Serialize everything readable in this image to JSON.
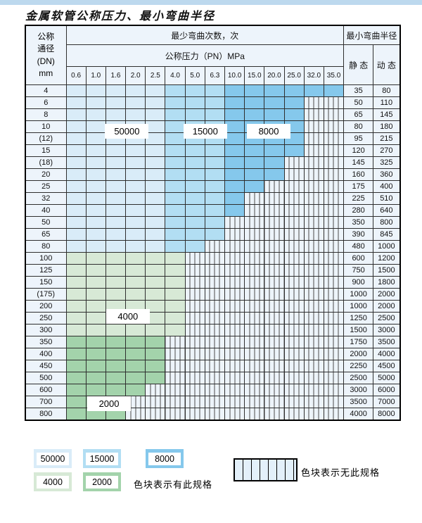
{
  "page": {
    "title": "金属软管公称压力、最小弯曲半径"
  },
  "colors": {
    "top_strip": "#bdd9ee",
    "grid_line": "#2e2e2e",
    "header_bg": "#edf4fb",
    "hatch_bg": "#edf4fa",
    "blue_50000": "#d9ecf8",
    "blue_15000": "#b2def3",
    "blue_8000": "#85c8ec",
    "green_4000": "#d7e9d6",
    "green_2000": "#a3d3ab"
  },
  "table": {
    "corner_lines": [
      "公称",
      "通径",
      "(DN)",
      "mm"
    ],
    "bend_cycles_header": "最少弯曲次数，次",
    "pressure_header": "公称压力（PN）MPa",
    "radius_header": "最小弯曲半径",
    "static_header": "静 态",
    "dynamic_header": "动 态",
    "pressure_columns": [
      "0.6",
      "1.0",
      "1.6",
      "2.0",
      "2.5",
      "4.0",
      "5.0",
      "6.3",
      "10.0",
      "15.0",
      "20.0",
      "25.0",
      "32.0",
      "35.0"
    ],
    "rows": [
      {
        "dn": "4",
        "last_colored_col": 13,
        "band": "blue",
        "static": "35",
        "dynamic": "80"
      },
      {
        "dn": "6",
        "last_colored_col": 11,
        "band": "blue",
        "static": "50",
        "dynamic": "110"
      },
      {
        "dn": "8",
        "last_colored_col": 11,
        "band": "blue",
        "static": "65",
        "dynamic": "145"
      },
      {
        "dn": "10",
        "last_colored_col": 11,
        "band": "blue",
        "static": "80",
        "dynamic": "180"
      },
      {
        "dn": "(12)",
        "last_colored_col": 11,
        "band": "blue",
        "static": "95",
        "dynamic": "215"
      },
      {
        "dn": "15",
        "last_colored_col": 11,
        "band": "blue",
        "static": "120",
        "dynamic": "270"
      },
      {
        "dn": "(18)",
        "last_colored_col": 10,
        "band": "blue",
        "static": "145",
        "dynamic": "325"
      },
      {
        "dn": "20",
        "last_colored_col": 10,
        "band": "blue",
        "static": "160",
        "dynamic": "360"
      },
      {
        "dn": "25",
        "last_colored_col": 9,
        "band": "blue",
        "static": "175",
        "dynamic": "400"
      },
      {
        "dn": "32",
        "last_colored_col": 8,
        "band": "blue",
        "static": "225",
        "dynamic": "510"
      },
      {
        "dn": "40",
        "last_colored_col": 8,
        "band": "blue",
        "static": "280",
        "dynamic": "640"
      },
      {
        "dn": "50",
        "last_colored_col": 7,
        "band": "blue",
        "static": "350",
        "dynamic": "800"
      },
      {
        "dn": "65",
        "last_colored_col": 7,
        "band": "blue",
        "static": "390",
        "dynamic": "845"
      },
      {
        "dn": "80",
        "last_colored_col": 6,
        "band": "blue",
        "static": "480",
        "dynamic": "1000"
      },
      {
        "dn": "100",
        "last_colored_col": 5,
        "band": "green-light",
        "static": "600",
        "dynamic": "1200"
      },
      {
        "dn": "125",
        "last_colored_col": 5,
        "band": "green-light",
        "static": "750",
        "dynamic": "1500"
      },
      {
        "dn": "150",
        "last_colored_col": 5,
        "band": "green-light",
        "static": "900",
        "dynamic": "1800"
      },
      {
        "dn": "(175)",
        "last_colored_col": 5,
        "band": "green-light",
        "static": "1000",
        "dynamic": "2000"
      },
      {
        "dn": "200",
        "last_colored_col": 5,
        "band": "green-light",
        "static": "1000",
        "dynamic": "2000"
      },
      {
        "dn": "250",
        "last_colored_col": 5,
        "band": "green-light",
        "static": "1250",
        "dynamic": "2500"
      },
      {
        "dn": "300",
        "last_colored_col": 5,
        "band": "green-light",
        "static": "1500",
        "dynamic": "3000"
      },
      {
        "dn": "350",
        "last_colored_col": 4,
        "band": "green-dark",
        "static": "1750",
        "dynamic": "3500"
      },
      {
        "dn": "400",
        "last_colored_col": 4,
        "band": "green-dark",
        "static": "2000",
        "dynamic": "4000"
      },
      {
        "dn": "450",
        "last_colored_col": 4,
        "band": "green-dark",
        "static": "2250",
        "dynamic": "4500"
      },
      {
        "dn": "500",
        "last_colored_col": 4,
        "band": "green-dark",
        "static": "2500",
        "dynamic": "5000"
      },
      {
        "dn": "600",
        "last_colored_col": 3,
        "band": "green-dark",
        "static": "3000",
        "dynamic": "6000"
      },
      {
        "dn": "700",
        "last_colored_col": 2,
        "band": "green-dark",
        "static": "3500",
        "dynamic": "7000"
      },
      {
        "dn": "800",
        "last_colored_col": 2,
        "band": "green-dark",
        "static": "4000",
        "dynamic": "8000"
      }
    ]
  },
  "overlay_labels": [
    {
      "text": "50000",
      "col_boundary": 3.1,
      "row_boundary": 3.8
    },
    {
      "text": "15000",
      "col_boundary": 7.05,
      "row_boundary": 3.8
    },
    {
      "text": "8000",
      "col_boundary": 10.25,
      "row_boundary": 3.8
    },
    {
      "text": "4000",
      "col_boundary": 3.15,
      "row_boundary": 18.4
    },
    {
      "text": "2000",
      "col_boundary": 2.2,
      "row_boundary": 25.3
    }
  ],
  "legend": {
    "row1": [
      {
        "value": "50000",
        "color": "#d9ecf8"
      },
      {
        "value": "15000",
        "color": "#b2def3"
      },
      {
        "value": "8000",
        "color": "#85c8ec"
      }
    ],
    "row2": [
      {
        "value": "4000",
        "color": "#d7e9d6"
      },
      {
        "value": "2000",
        "color": "#a3d3ab"
      }
    ],
    "has_spec_text": "色块表示有此规格",
    "no_spec_text": "色块表示无此规格"
  }
}
